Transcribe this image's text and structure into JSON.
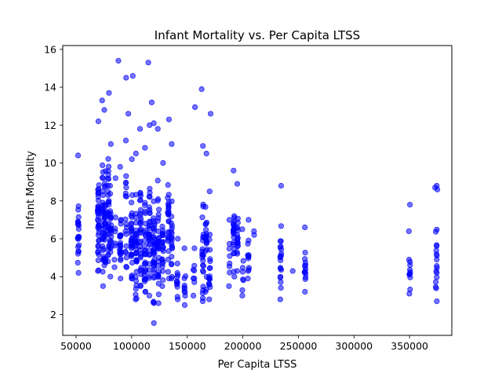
{
  "chart_data": {
    "type": "scatter",
    "title": "Infant Mortality vs. Per Capita LTSS",
    "xlabel": "Per Capita LTSS",
    "ylabel": "Infant Mortality",
    "xlim": [
      38000,
      388000
    ],
    "ylim": [
      0.9,
      16.2
    ],
    "x_ticks": [
      50000,
      100000,
      150000,
      200000,
      250000,
      300000,
      350000
    ],
    "x_tick_labels": [
      "50000",
      "100000",
      "150000",
      "200000",
      "250000",
      "300000",
      "350000"
    ],
    "y_ticks": [
      2,
      4,
      6,
      8,
      10,
      12,
      14,
      16
    ],
    "y_tick_labels": [
      "2",
      "4",
      "6",
      "8",
      "10",
      "12",
      "14",
      "16"
    ],
    "grid": false,
    "marker_color": "#0000ff",
    "marker_alpha": 0.55,
    "clusters": [
      {
        "x": 52000,
        "n": 22,
        "ymin": 4.2,
        "ymax": 10.4
      },
      {
        "x": 70000,
        "n": 40,
        "ymin": 4.3,
        "ymax": 12.2
      },
      {
        "x": 74000,
        "n": 30,
        "ymin": 3.5,
        "ymax": 13.3
      },
      {
        "x": 76000,
        "n": 28,
        "ymin": 4.6,
        "ymax": 12.8
      },
      {
        "x": 79000,
        "n": 28,
        "ymin": 4.8,
        "ymax": 13.7
      },
      {
        "x": 81000,
        "n": 25,
        "ymin": 4.0,
        "ymax": 11.0
      },
      {
        "x": 85000,
        "n": 8,
        "ymin": 4.5,
        "ymax": 9.2
      },
      {
        "x": 90000,
        "n": 24,
        "ymin": 3.9,
        "ymax": 9.8
      },
      {
        "x": 95000,
        "n": 20,
        "ymin": 4.5,
        "ymax": 14.5
      },
      {
        "x": 100000,
        "n": 32,
        "ymin": 3.9,
        "ymax": 10.2
      },
      {
        "x": 104000,
        "n": 34,
        "ymin": 2.8,
        "ymax": 10.5
      },
      {
        "x": 108000,
        "n": 30,
        "ymin": 3.5,
        "ymax": 11.8
      },
      {
        "x": 112000,
        "n": 30,
        "ymin": 3.2,
        "ymax": 10.8
      },
      {
        "x": 116000,
        "n": 32,
        "ymin": 3.0,
        "ymax": 12.0
      },
      {
        "x": 120000,
        "n": 36,
        "ymin": 2.6,
        "ymax": 12.1
      },
      {
        "x": 124000,
        "n": 30,
        "ymin": 2.6,
        "ymax": 11.8
      },
      {
        "x": 128000,
        "n": 22,
        "ymin": 3.5,
        "ymax": 10.0
      },
      {
        "x": 133000,
        "n": 26,
        "ymin": 3.9,
        "ymax": 12.3
      },
      {
        "x": 136000,
        "n": 20,
        "ymin": 3.9,
        "ymax": 11.0
      },
      {
        "x": 141000,
        "n": 12,
        "ymin": 2.8,
        "ymax": 6.0
      },
      {
        "x": 148000,
        "n": 10,
        "ymin": 2.5,
        "ymax": 5.5
      },
      {
        "x": 156000,
        "n": 8,
        "ymin": 3.0,
        "ymax": 5.5
      },
      {
        "x": 164000,
        "n": 24,
        "ymin": 2.7,
        "ymax": 10.9
      },
      {
        "x": 167000,
        "n": 20,
        "ymin": 3.2,
        "ymax": 10.5
      },
      {
        "x": 170000,
        "n": 18,
        "ymin": 2.8,
        "ymax": 8.5
      },
      {
        "x": 188000,
        "n": 8,
        "ymin": 3.5,
        "ymax": 7.0
      },
      {
        "x": 192000,
        "n": 22,
        "ymin": 4.0,
        "ymax": 9.6
      },
      {
        "x": 195000,
        "n": 18,
        "ymin": 4.3,
        "ymax": 8.9
      },
      {
        "x": 200000,
        "n": 8,
        "ymin": 3.0,
        "ymax": 6.5
      },
      {
        "x": 205000,
        "n": 12,
        "ymin": 3.9,
        "ymax": 7.0
      },
      {
        "x": 210000,
        "n": 2,
        "ymin": 6.2,
        "ymax": 6.4
      },
      {
        "x": 234000,
        "n": 20,
        "ymin": 2.8,
        "ymax": 8.8
      },
      {
        "x": 245000,
        "n": 1,
        "ymin": 4.3,
        "ymax": 4.3
      },
      {
        "x": 256000,
        "n": 14,
        "ymin": 3.2,
        "ymax": 6.6
      },
      {
        "x": 350000,
        "n": 14,
        "ymin": 3.1,
        "ymax": 7.8
      },
      {
        "x": 374000,
        "n": 18,
        "ymin": 2.7,
        "ymax": 8.8
      }
    ],
    "outliers": [
      [
        88000,
        15.4
      ],
      [
        101000,
        14.6
      ],
      [
        115000,
        15.3
      ],
      [
        118000,
        13.2
      ],
      [
        157000,
        12.95
      ],
      [
        163000,
        13.9
      ],
      [
        97000,
        12.6
      ],
      [
        171000,
        12.6
      ],
      [
        120000,
        1.55
      ],
      [
        375000,
        8.6
      ],
      [
        373000,
        8.7
      ],
      [
        100000,
        3.9
      ]
    ]
  }
}
